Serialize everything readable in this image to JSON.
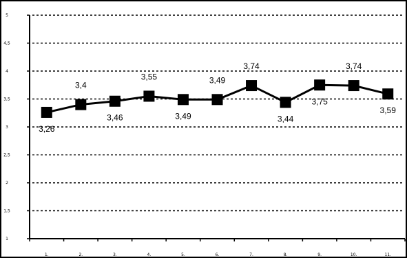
{
  "chart_data": {
    "type": "line",
    "title": "",
    "xlabel": "",
    "ylabel": "",
    "categories": [
      "1.",
      "2.",
      "3.",
      "4.",
      "5.",
      "6.",
      "7.",
      "8.",
      "9.",
      "10.",
      "11."
    ],
    "series": [
      {
        "values": [
          3.26,
          3.4,
          3.46,
          3.55,
          3.49,
          3.49,
          3.74,
          3.44,
          3.75,
          3.74,
          3.59
        ]
      }
    ],
    "data_labels": [
      "3,26",
      "3,4",
      "3,46",
      "3,55",
      "3,49",
      "3,49",
      "3,74",
      "3,44",
      "3,75",
      "3,74",
      "3,59"
    ],
    "data_label_positions": [
      "below",
      "above",
      "below",
      "above",
      "below",
      "above",
      "above",
      "below",
      "below",
      "above",
      "below"
    ],
    "ylim": [
      1,
      5
    ],
    "yticks": [
      1,
      1.5,
      2,
      2.5,
      3,
      3.5,
      4,
      4.5,
      5
    ],
    "ytick_labels": [
      "1",
      "1,5",
      "2",
      "2,5",
      "3",
      "3,5",
      "4",
      "4,5",
      "5"
    ],
    "grid": "horizontal-dotted",
    "legend": "none",
    "line_color": "#000000",
    "marker": "square"
  }
}
